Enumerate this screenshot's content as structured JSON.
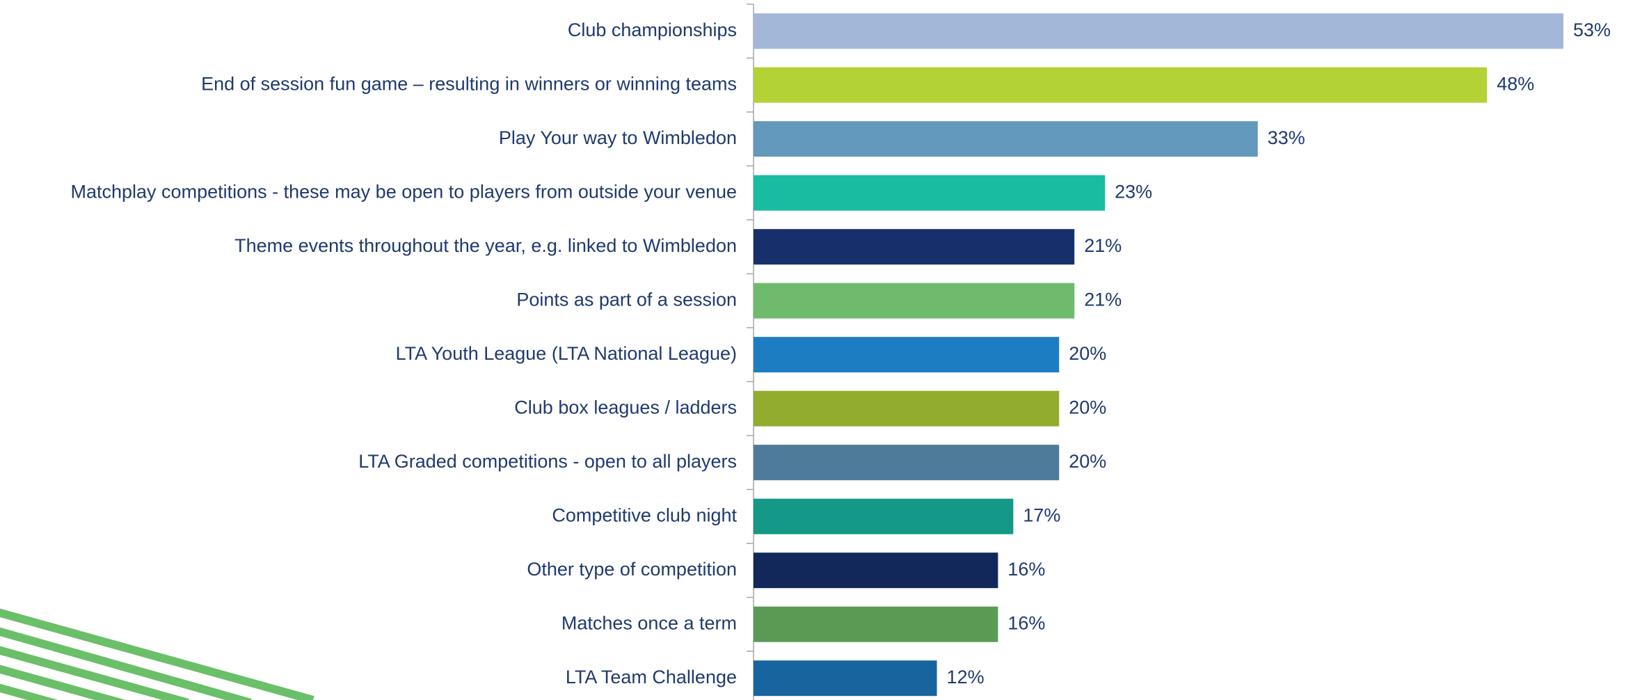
{
  "chart_data": {
    "type": "bar",
    "orientation": "horizontal",
    "categories": [
      "Club championships",
      "End of session fun game – resulting in winners or winning teams",
      "Play Your way to Wimbledon",
      "Matchplay competitions - these may be open to players from outside your venue",
      "Theme events throughout the year, e.g. linked to Wimbledon",
      "Points as part of a session",
      "LTA Youth League (LTA National League)",
      "Club box leagues / ladders",
      "LTA Graded competitions - open to all players",
      "Competitive club night",
      "Other type of competition",
      "Matches once a term",
      "LTA Team Challenge"
    ],
    "values": [
      53,
      48,
      33,
      23,
      21,
      21,
      20,
      20,
      20,
      17,
      16,
      16,
      12
    ],
    "value_labels": [
      "53%",
      "48%",
      "33%",
      "23%",
      "21%",
      "21%",
      "20%",
      "20%",
      "20%",
      "17%",
      "16%",
      "16%",
      "12%"
    ],
    "colors": [
      "#a3b8d9",
      "#b2d235",
      "#6299bd",
      "#1abc9f",
      "#17306b",
      "#6fbb6d",
      "#1c7dc2",
      "#92ac2e",
      "#4f7b9b",
      "#139985",
      "#13285a",
      "#5b9a55",
      "#17649f"
    ]
  }
}
